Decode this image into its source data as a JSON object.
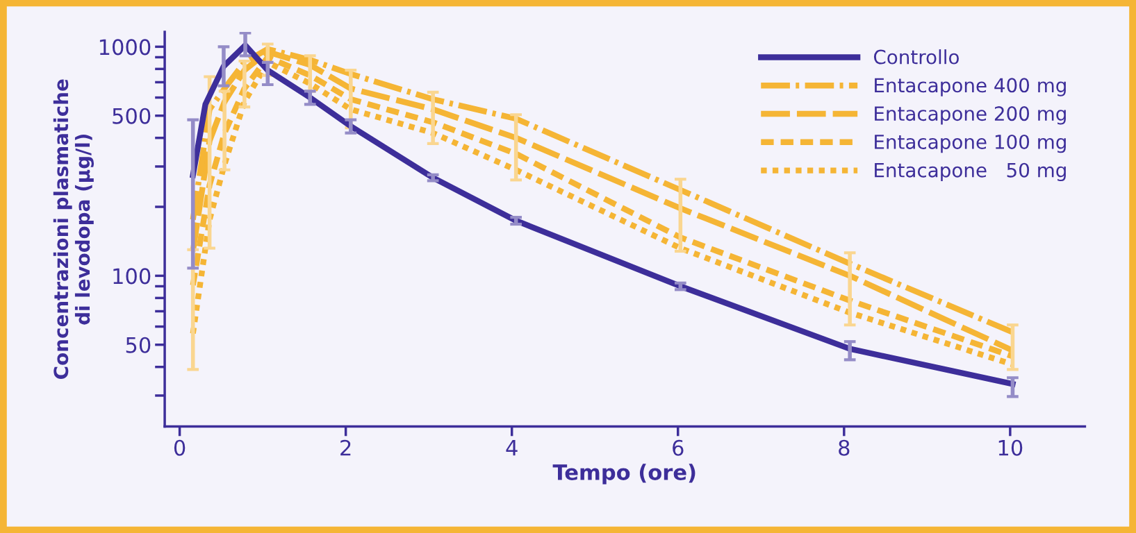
{
  "chart_data": {
    "type": "line",
    "xlabel": "Tempo (ore)",
    "ylabel": "Concentrazioni plasmatiche\ndi levodopa (µg/l)",
    "log": "y",
    "xlim": [
      -0.18,
      10.9
    ],
    "xticks": [
      0,
      2,
      4,
      6,
      8,
      10
    ],
    "ylim": [
      22,
      1160
    ],
    "yticks": [
      {
        "value": 30,
        "label": null
      },
      {
        "value": 40,
        "label": null
      },
      50,
      {
        "value": 60,
        "label": null
      },
      {
        "value": 70,
        "label": null
      },
      {
        "value": 80,
        "label": null
      },
      {
        "value": 90,
        "label": null
      },
      100,
      {
        "value": 200,
        "label": null
      },
      {
        "value": 300,
        "label": null
      },
      {
        "value": 400,
        "label": null
      },
      500,
      {
        "value": 600,
        "label": null
      },
      {
        "value": 700,
        "label": null
      },
      {
        "value": 800,
        "label": null
      },
      {
        "value": 900,
        "label": null
      },
      1000
    ],
    "grid": false,
    "legend": "top right",
    "marker": "none",
    "series": [
      {
        "name": "Controllo",
        "color": "#3d2e9a",
        "line_style": "solid",
        "x": [
          0.16,
          0.31,
          0.53,
          0.79,
          1.06,
          1.57,
          2.06,
          3.05,
          4.05,
          6.03,
          8.07,
          10.03
        ],
        "values": [
          275,
          561,
          822,
          1015,
          790,
          600,
          450,
          268,
          174,
          90,
          48,
          33.7
        ],
        "errors": [
          [
            108,
            480
          ],
          null,
          [
            675,
            1000
          ],
          [
            913,
            1150
          ],
          [
            683,
            855
          ],
          [
            560,
            640
          ],
          [
            420,
            480
          ],
          [
            260,
            276
          ],
          [
            168,
            180
          ],
          [
            87,
            93
          ],
          [
            43,
            51.6
          ],
          [
            29.7,
            35.9
          ]
        ]
      },
      {
        "name": "Entacapone 400 mg",
        "color": "#f5b535",
        "line_style": "dashdot",
        "x": [
          0.16,
          0.36,
          0.54,
          0.78,
          1.06,
          1.57,
          2.06,
          3.05,
          4.05,
          6.03,
          8.07,
          10.03
        ],
        "values": [
          176,
          533,
          657,
          855,
          977,
          877,
          760,
          590,
          485,
          237,
          113,
          56.7
        ]
      },
      {
        "name": "Entacapone 200 mg",
        "color": "#f5b535",
        "line_style": "dashed",
        "x": [
          0.16,
          0.36,
          0.54,
          0.78,
          1.06,
          1.57,
          2.06,
          3.05,
          4.05,
          6.03,
          8.07,
          10.03
        ],
        "values": [
          128,
          388,
          575,
          790,
          950,
          833,
          657,
          533,
          400,
          197,
          100,
          47.2
        ],
        "errors": [
          [
            39,
            130
          ],
          [
            132,
            740
          ],
          [
            290,
            640
          ],
          [
            546,
            866
          ],
          [
            750,
            1027
          ],
          [
            640,
            913
          ],
          [
            443,
            790
          ],
          [
            378,
            633
          ],
          [
            262,
            505
          ],
          [
            128,
            264
          ],
          [
            61,
            126
          ],
          [
            39,
            61
          ]
        ]
      },
      {
        "name": "Entacapone 100 mg",
        "color": "#f5b535",
        "line_style": "mediumdashed",
        "x": [
          0.16,
          0.36,
          0.54,
          0.78,
          1.06,
          1.57,
          2.06,
          3.05,
          4.05,
          6.03,
          8.07,
          10.03
        ],
        "values": [
          91,
          249,
          420,
          657,
          900,
          750,
          590,
          468,
          341,
          147,
          78,
          44.5
        ]
      },
      {
        "name": "Entacapone   50 mg",
        "color": "#f5b535",
        "line_style": "dotted",
        "x": [
          0.16,
          0.36,
          0.54,
          0.78,
          1.06,
          1.57,
          2.06,
          3.05,
          4.05,
          6.03,
          8.07,
          10.03
        ],
        "values": [
          56,
          176,
          306,
          575,
          855,
          690,
          533,
          420,
          290,
          132,
          69,
          41
        ]
      }
    ]
  }
}
